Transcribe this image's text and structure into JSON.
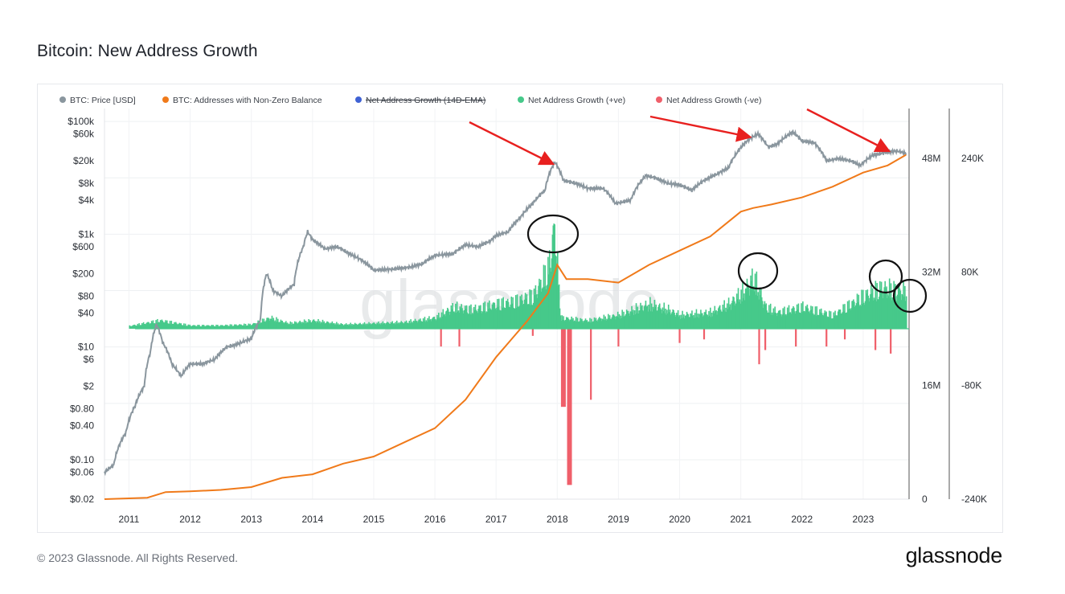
{
  "page": {
    "title": "Bitcoin: New Address Growth",
    "footer": "© 2023 Glassnode. All Rights Reserved.",
    "brand": "glassnode",
    "watermark": "glassnode"
  },
  "chart_data": {
    "type": "line",
    "legend_position": "top-left",
    "grid": true,
    "x_axis": {
      "range": [
        2010.6,
        2023.75
      ],
      "ticks": [
        "2011",
        "2012",
        "2013",
        "2014",
        "2015",
        "2016",
        "2017",
        "2018",
        "2019",
        "2020",
        "2021",
        "2022",
        "2023"
      ]
    },
    "y_axes": {
      "price": {
        "scale": "log",
        "range": [
          0.02,
          200000
        ],
        "tick_labels": [
          "$100k",
          "$60k",
          "$20k",
          "$8k",
          "$4k",
          "$1k",
          "$600",
          "$200",
          "$80",
          "$40",
          "$10",
          "$6",
          "$2",
          "$0.80",
          "$0.40",
          "$0.10",
          "$0.06",
          "$0.02"
        ],
        "tick_values": [
          100000,
          60000,
          20000,
          8000,
          4000,
          1000,
          600,
          200,
          80,
          40,
          10,
          6,
          2,
          0.8,
          0.4,
          0.1,
          0.06,
          0.02
        ]
      },
      "addresses": {
        "scale": "linear",
        "range": [
          0,
          48000000
        ],
        "tick_labels": [
          "48M",
          "32M",
          "16M",
          "0"
        ],
        "tick_values": [
          48000000,
          32000000,
          16000000,
          0
        ]
      },
      "net_growth": {
        "scale": "linear",
        "range": [
          -240000,
          240000
        ],
        "tick_labels": [
          "240K",
          "80K",
          "-80K",
          "-240K"
        ],
        "tick_values": [
          240000,
          80000,
          -80000,
          -240000
        ]
      }
    },
    "colors": {
      "price": "#8a969e",
      "addresses": "#f07a1a",
      "ema": "#3f62d4",
      "positive": "#46c98a",
      "negative": "#ef5f6a",
      "annotation_arrow": "#e8201f",
      "annotation_circle": "#111111"
    },
    "series": [
      {
        "name": "BTC: Price [USD]",
        "axis": "price",
        "points": [
          [
            2010.6,
            0.06
          ],
          [
            2010.75,
            0.08
          ],
          [
            2010.95,
            0.3
          ],
          [
            2011.1,
            0.9
          ],
          [
            2011.25,
            2
          ],
          [
            2011.35,
            8
          ],
          [
            2011.45,
            25
          ],
          [
            2011.55,
            12
          ],
          [
            2011.7,
            5
          ],
          [
            2011.85,
            3
          ],
          [
            2012.0,
            5
          ],
          [
            2012.2,
            5
          ],
          [
            2012.4,
            6
          ],
          [
            2012.6,
            10
          ],
          [
            2012.75,
            11
          ],
          [
            2013.0,
            14
          ],
          [
            2013.15,
            30
          ],
          [
            2013.25,
            200
          ],
          [
            2013.35,
            100
          ],
          [
            2013.5,
            80
          ],
          [
            2013.7,
            130
          ],
          [
            2013.85,
            600
          ],
          [
            2013.92,
            1100
          ],
          [
            2014.0,
            800
          ],
          [
            2014.2,
            550
          ],
          [
            2014.4,
            600
          ],
          [
            2014.6,
            450
          ],
          [
            2014.8,
            350
          ],
          [
            2015.0,
            230
          ],
          [
            2015.3,
            240
          ],
          [
            2015.6,
            260
          ],
          [
            2015.8,
            300
          ],
          [
            2016.0,
            420
          ],
          [
            2016.3,
            450
          ],
          [
            2016.5,
            650
          ],
          [
            2016.7,
            600
          ],
          [
            2016.9,
            750
          ],
          [
            2017.0,
            950
          ],
          [
            2017.2,
            1100
          ],
          [
            2017.4,
            2000
          ],
          [
            2017.6,
            3500
          ],
          [
            2017.8,
            6000
          ],
          [
            2017.96,
            19000
          ],
          [
            2018.1,
            9000
          ],
          [
            2018.3,
            8000
          ],
          [
            2018.5,
            6500
          ],
          [
            2018.75,
            6500
          ],
          [
            2018.95,
            3500
          ],
          [
            2019.2,
            4000
          ],
          [
            2019.45,
            11000
          ],
          [
            2019.6,
            10000
          ],
          [
            2019.8,
            8000
          ],
          [
            2020.0,
            7500
          ],
          [
            2020.2,
            6000
          ],
          [
            2020.4,
            9000
          ],
          [
            2020.6,
            11500
          ],
          [
            2020.8,
            15000
          ],
          [
            2020.95,
            29000
          ],
          [
            2021.1,
            45000
          ],
          [
            2021.28,
            60000
          ],
          [
            2021.45,
            35000
          ],
          [
            2021.6,
            40000
          ],
          [
            2021.85,
            65000
          ],
          [
            2022.0,
            45000
          ],
          [
            2022.2,
            42000
          ],
          [
            2022.4,
            20000
          ],
          [
            2022.6,
            22000
          ],
          [
            2022.8,
            20000
          ],
          [
            2022.95,
            16500
          ],
          [
            2023.15,
            25000
          ],
          [
            2023.35,
            28000
          ],
          [
            2023.55,
            30000
          ],
          [
            2023.7,
            27000
          ]
        ]
      },
      {
        "name": "BTC: Addresses with Non-Zero Balance",
        "axis": "addresses",
        "points": [
          [
            2010.6,
            0
          ],
          [
            2011.3,
            200000
          ],
          [
            2011.6,
            1000000
          ],
          [
            2012.0,
            1100000
          ],
          [
            2012.5,
            1300000
          ],
          [
            2013.0,
            1700000
          ],
          [
            2013.5,
            3000000
          ],
          [
            2014.0,
            3500000
          ],
          [
            2014.5,
            5000000
          ],
          [
            2015.0,
            6000000
          ],
          [
            2015.5,
            8000000
          ],
          [
            2016.0,
            10000000
          ],
          [
            2016.5,
            14000000
          ],
          [
            2017.0,
            20000000
          ],
          [
            2017.5,
            25000000
          ],
          [
            2017.85,
            29000000
          ],
          [
            2018.0,
            33000000
          ],
          [
            2018.15,
            31000000
          ],
          [
            2018.5,
            31000000
          ],
          [
            2019.0,
            30500000
          ],
          [
            2019.5,
            33000000
          ],
          [
            2020.0,
            35000000
          ],
          [
            2020.5,
            37000000
          ],
          [
            2021.0,
            40500000
          ],
          [
            2021.2,
            41000000
          ],
          [
            2021.5,
            41500000
          ],
          [
            2022.0,
            42500000
          ],
          [
            2022.5,
            44000000
          ],
          [
            2023.0,
            46000000
          ],
          [
            2023.4,
            47000000
          ],
          [
            2023.7,
            48500000
          ]
        ]
      },
      {
        "name": "Net Address Growth (14D-EMA)",
        "axis": "net_growth",
        "hidden": true,
        "points": []
      },
      {
        "name": "Net Address Growth (+ve)",
        "axis": "net_growth",
        "points": [
          [
            2011.0,
            5000
          ],
          [
            2011.5,
            15000
          ],
          [
            2012.0,
            6000
          ],
          [
            2012.5,
            6000
          ],
          [
            2013.0,
            8000
          ],
          [
            2013.3,
            20000
          ],
          [
            2013.6,
            10000
          ],
          [
            2014.0,
            15000
          ],
          [
            2014.5,
            8000
          ],
          [
            2015.0,
            10000
          ],
          [
            2015.5,
            12000
          ],
          [
            2016.0,
            20000
          ],
          [
            2016.3,
            40000
          ],
          [
            2016.6,
            35000
          ],
          [
            2017.0,
            45000
          ],
          [
            2017.3,
            50000
          ],
          [
            2017.6,
            60000
          ],
          [
            2017.85,
            110000
          ],
          [
            2017.95,
            190000
          ],
          [
            2018.05,
            20000
          ],
          [
            2018.5,
            15000
          ],
          [
            2019.0,
            25000
          ],
          [
            2019.5,
            45000
          ],
          [
            2019.8,
            35000
          ],
          [
            2020.0,
            25000
          ],
          [
            2020.5,
            30000
          ],
          [
            2020.8,
            45000
          ],
          [
            2021.05,
            70000
          ],
          [
            2021.2,
            95000
          ],
          [
            2021.4,
            40000
          ],
          [
            2021.6,
            30000
          ],
          [
            2022.0,
            40000
          ],
          [
            2022.5,
            25000
          ],
          [
            2023.0,
            60000
          ],
          [
            2023.3,
            75000
          ],
          [
            2023.55,
            70000
          ]
        ]
      },
      {
        "name": "Net Address Growth (-ve)",
        "axis": "net_growth",
        "points": [
          [
            2016.1,
            -25000
          ],
          [
            2016.4,
            -25000
          ],
          [
            2017.6,
            -10000
          ],
          [
            2018.1,
            -110000
          ],
          [
            2018.2,
            -220000
          ],
          [
            2018.55,
            -100000
          ],
          [
            2019.0,
            -25000
          ],
          [
            2020.0,
            -20000
          ],
          [
            2020.4,
            -15000
          ],
          [
            2021.3,
            -50000
          ],
          [
            2021.4,
            -30000
          ],
          [
            2021.9,
            -25000
          ],
          [
            2022.4,
            -25000
          ],
          [
            2022.7,
            -15000
          ],
          [
            2023.2,
            -30000
          ],
          [
            2023.45,
            -35000
          ]
        ]
      }
    ]
  }
}
